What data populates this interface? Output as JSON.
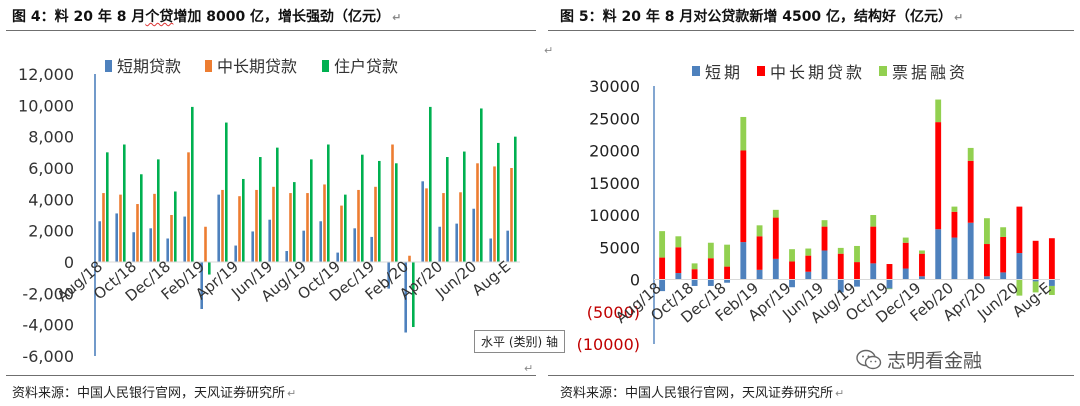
{
  "left": {
    "title": "图 4：料 20 年 8 月",
    "title_mark": "个贷",
    "title_rest": "增加 8000 亿，增长强劲（亿元）",
    "source": "资料来源：中国人民银行官网，天风证券研究所",
    "axis_tooltip": "水平 (类别) 轴"
  },
  "right": {
    "title": "图 5：料 20 年 8 月对公贷款新增 4500 亿，结构好（亿元）",
    "source": "资料来源：中国人民银行官网，天风证券研究所",
    "watermark": "志明看金融"
  },
  "colors": {
    "short_blue": "#4e81bd",
    "mid_orange": "#ed7d31",
    "house_green": "#00b050",
    "mid_red": "#ff0000",
    "bill_green": "#92d050",
    "neg_label": "#c00000"
  },
  "chart_data": [
    {
      "type": "bar",
      "title": "",
      "categories": [
        "Aug/18",
        "Sep/18",
        "Oct/18",
        "Nov/18",
        "Dec/18",
        "Jan/19",
        "Feb/19",
        "Mar/19",
        "Apr/19",
        "May/19",
        "Jun/19",
        "Jul/19",
        "Aug/19",
        "Sep/19",
        "Oct/19",
        "Nov/19",
        "Dec/19",
        "Jan/20",
        "Feb/20",
        "Mar/20",
        "Apr/20",
        "May/20",
        "Jun/20",
        "Jul/20",
        "Aug-E"
      ],
      "tick_labels": [
        "Aug/18",
        "Oct/18",
        "Dec/18",
        "Feb/19",
        "Apr/19",
        "Jun/19",
        "Aug/19",
        "Oct/19",
        "Dec/19",
        "Feb/20",
        "Apr/20",
        "Jun/20",
        "Aug-E"
      ],
      "series": [
        {
          "name": "短期贷款",
          "color_key": "short_blue",
          "values": [
            2600,
            3100,
            1900,
            2150,
            1500,
            2900,
            -3000,
            4300,
            1050,
            1950,
            2700,
            700,
            2000,
            2600,
            600,
            2150,
            1600,
            -1700,
            -4500,
            5150,
            2250,
            2450,
            3400,
            1500,
            2000
          ]
        },
        {
          "name": "中长期贷款",
          "color_key": "mid_orange",
          "values": [
            4400,
            4300,
            3700,
            4350,
            3000,
            7000,
            2250,
            4600,
            4200,
            4600,
            4800,
            4400,
            4400,
            4950,
            3600,
            4600,
            4800,
            7500,
            400,
            4700,
            4400,
            4450,
            6300,
            6100,
            6000
          ]
        },
        {
          "name": "住户贷款",
          "color_key": "house_green",
          "values": [
            7000,
            7500,
            5600,
            6550,
            4500,
            9900,
            -800,
            8900,
            5300,
            6700,
            7300,
            5100,
            6550,
            7500,
            4300,
            6850,
            6450,
            6300,
            -4150,
            9900,
            6700,
            7050,
            9800,
            7600,
            8000
          ]
        }
      ],
      "ylim": [
        -6000,
        12000
      ],
      "yticks": [
        "12,000",
        "10,000",
        "8,000",
        "6,000",
        "4,000",
        "2,000",
        "0",
        "-2,000",
        "-4,000",
        "-6,000"
      ],
      "ytick_values": [
        12000,
        10000,
        8000,
        6000,
        4000,
        2000,
        0,
        -2000,
        -4000,
        -6000
      ],
      "legend_position": "top",
      "grid": false
    },
    {
      "type": "bar",
      "stacked": true,
      "title": "",
      "categories": [
        "Aug/18",
        "Sep/18",
        "Oct/18",
        "Nov/18",
        "Dec/18",
        "Jan/19",
        "Feb/19",
        "Mar/19",
        "Apr/19",
        "May/19",
        "Jun/19",
        "Jul/19",
        "Aug/19",
        "Sep/19",
        "Oct/19",
        "Nov/19",
        "Dec/19",
        "Jan/20",
        "Feb/20",
        "Mar/20",
        "Apr/20",
        "May/20",
        "Jun/20",
        "Jul/20",
        "Aug-E"
      ],
      "tick_labels": [
        "Aug/18",
        "Oct/18",
        "Dec/18",
        "Feb/19",
        "Apr/19",
        "Jun/19",
        "Aug/19",
        "Oct/19",
        "Dec/19",
        "Feb/20",
        "Apr/20",
        "Jun/20",
        "Aug-E"
      ],
      "series": [
        {
          "name": "短期",
          "color_key": "short_blue",
          "values": [
            -1800,
            1000,
            -1000,
            -1000,
            -500,
            5800,
            1500,
            3200,
            -1200,
            1200,
            4500,
            -2000,
            -1100,
            2500,
            -1400,
            1700,
            500,
            7800,
            6500,
            8800,
            500,
            1100,
            4100,
            -300,
            -1000
          ]
        },
        {
          "name": "中长期贷款",
          "color_key": "mid_red",
          "values": [
            3400,
            4000,
            1600,
            3300,
            2000,
            14200,
            5200,
            6400,
            2800,
            2500,
            3700,
            4000,
            2700,
            5700,
            2400,
            4000,
            3500,
            16600,
            4000,
            9600,
            5000,
            5500,
            7200,
            6000,
            6400
          ]
        },
        {
          "name": "票据融资",
          "color_key": "bill_green",
          "values": [
            4100,
            1700,
            900,
            2400,
            3400,
            5200,
            1700,
            1200,
            1900,
            1100,
            1000,
            900,
            2500,
            1800,
            -100,
            800,
            500,
            3500,
            800,
            2000,
            4000,
            1500,
            -2500,
            -1700,
            -1400
          ]
        }
      ],
      "ylim": [
        -10000,
        30000
      ],
      "yticks": [
        "30000",
        "25000",
        "20000",
        "15000",
        "10000",
        "5000",
        "0",
        "(5000)",
        "(10000)"
      ],
      "ytick_values": [
        30000,
        25000,
        20000,
        15000,
        10000,
        5000,
        0,
        -5000,
        -10000
      ],
      "legend_position": "top",
      "grid": false
    }
  ]
}
